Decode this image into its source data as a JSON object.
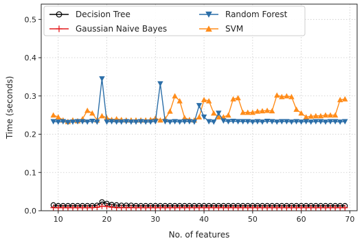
{
  "chart_data": {
    "type": "line",
    "title": "",
    "xlabel": "No. of features",
    "ylabel": "Time (seconds)",
    "xlim": [
      6.5,
      71.5
    ],
    "ylim": [
      0,
      0.54
    ],
    "xticks": [
      10,
      20,
      30,
      40,
      50,
      60,
      70
    ],
    "yticks": [
      0.0,
      0.1,
      0.2,
      0.3,
      0.4,
      0.5
    ],
    "ytick_labels": [
      "0.0",
      "0.1",
      "0.2",
      "0.3",
      "0.4",
      "0.5"
    ],
    "grid": true,
    "legend": {
      "placement": "top",
      "columns": 2
    },
    "x": [
      9,
      10,
      11,
      12,
      13,
      14,
      15,
      16,
      17,
      18,
      19,
      20,
      21,
      22,
      23,
      24,
      25,
      26,
      27,
      28,
      29,
      30,
      31,
      32,
      33,
      34,
      35,
      36,
      37,
      38,
      39,
      40,
      41,
      42,
      43,
      44,
      45,
      46,
      47,
      48,
      49,
      50,
      51,
      52,
      53,
      54,
      55,
      56,
      57,
      58,
      59,
      60,
      61,
      62,
      63,
      64,
      65,
      66,
      67,
      68,
      69
    ],
    "series": [
      {
        "name": "Decision Tree",
        "color": "#000000",
        "marker": "circle",
        "values": [
          0.015,
          0.013,
          0.013,
          0.013,
          0.013,
          0.013,
          0.013,
          0.013,
          0.013,
          0.014,
          0.023,
          0.019,
          0.016,
          0.015,
          0.014,
          0.014,
          0.014,
          0.013,
          0.013,
          0.013,
          0.013,
          0.013,
          0.013,
          0.013,
          0.013,
          0.013,
          0.013,
          0.013,
          0.013,
          0.013,
          0.013,
          0.013,
          0.013,
          0.013,
          0.013,
          0.013,
          0.013,
          0.013,
          0.013,
          0.013,
          0.013,
          0.013,
          0.013,
          0.013,
          0.013,
          0.013,
          0.013,
          0.013,
          0.013,
          0.013,
          0.013,
          0.013,
          0.013,
          0.013,
          0.013,
          0.013,
          0.013,
          0.013,
          0.013,
          0.013,
          0.013
        ]
      },
      {
        "name": "Gaussian Naive Bayes",
        "color": "#e41a1c",
        "marker": "plus",
        "values": [
          0.008,
          0.008,
          0.008,
          0.008,
          0.008,
          0.008,
          0.008,
          0.008,
          0.008,
          0.009,
          0.012,
          0.011,
          0.009,
          0.008,
          0.008,
          0.008,
          0.008,
          0.008,
          0.008,
          0.008,
          0.008,
          0.008,
          0.008,
          0.008,
          0.008,
          0.008,
          0.008,
          0.008,
          0.008,
          0.008,
          0.008,
          0.008,
          0.008,
          0.008,
          0.008,
          0.008,
          0.008,
          0.008,
          0.008,
          0.008,
          0.008,
          0.008,
          0.008,
          0.008,
          0.008,
          0.008,
          0.008,
          0.008,
          0.008,
          0.008,
          0.008,
          0.008,
          0.008,
          0.008,
          0.008,
          0.008,
          0.008,
          0.008,
          0.008,
          0.008,
          0.008
        ]
      },
      {
        "name": "Random Forest",
        "color": "#2b6ea8",
        "marker": "triangle-down",
        "values": [
          0.233,
          0.232,
          0.233,
          0.231,
          0.232,
          0.233,
          0.233,
          0.232,
          0.234,
          0.232,
          0.345,
          0.232,
          0.233,
          0.232,
          0.232,
          0.233,
          0.232,
          0.232,
          0.233,
          0.232,
          0.232,
          0.233,
          0.332,
          0.233,
          0.232,
          0.233,
          0.232,
          0.233,
          0.233,
          0.232,
          0.275,
          0.245,
          0.233,
          0.232,
          0.255,
          0.235,
          0.233,
          0.234,
          0.233,
          0.233,
          0.233,
          0.232,
          0.233,
          0.232,
          0.234,
          0.233,
          0.232,
          0.233,
          0.233,
          0.232,
          0.233,
          0.232,
          0.233,
          0.232,
          0.233,
          0.233,
          0.232,
          0.233,
          0.233,
          0.232,
          0.233
        ]
      },
      {
        "name": "SVM",
        "color": "#ff8c1a",
        "marker": "triangle-up",
        "values": [
          0.25,
          0.245,
          0.237,
          0.233,
          0.237,
          0.235,
          0.24,
          0.262,
          0.255,
          0.237,
          0.248,
          0.243,
          0.238,
          0.24,
          0.238,
          0.237,
          0.237,
          0.237,
          0.237,
          0.237,
          0.238,
          0.242,
          0.237,
          0.24,
          0.26,
          0.3,
          0.287,
          0.243,
          0.238,
          0.237,
          0.245,
          0.29,
          0.287,
          0.255,
          0.245,
          0.245,
          0.25,
          0.292,
          0.295,
          0.257,
          0.257,
          0.257,
          0.26,
          0.261,
          0.262,
          0.261,
          0.302,
          0.298,
          0.3,
          0.298,
          0.265,
          0.255,
          0.245,
          0.247,
          0.248,
          0.248,
          0.25,
          0.25,
          0.25,
          0.29,
          0.292
        ]
      }
    ]
  }
}
